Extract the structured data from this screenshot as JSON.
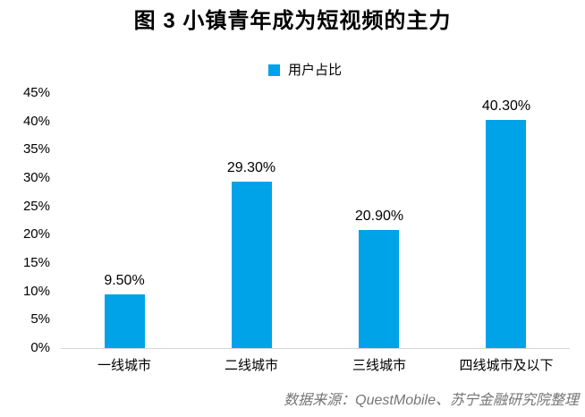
{
  "title": "图 3 小镇青年成为短视频的主力",
  "legend": {
    "label": "用户占比",
    "marker_color": "#00A2E8"
  },
  "footer": "数据来源：QuestMobile、苏宁金融研究院整理",
  "chart_data": {
    "type": "bar",
    "title": "图 3 小镇青年成为短视频的主力",
    "categories": [
      "一线城市",
      "二线城市",
      "三线城市",
      "四线城市及以下"
    ],
    "series": [
      {
        "name": "用户占比",
        "values": [
          9.5,
          29.3,
          20.9,
          40.3
        ]
      }
    ],
    "data_labels": [
      "9.50%",
      "29.30%",
      "20.90%",
      "40.30%"
    ],
    "xlabel": "",
    "ylabel": "",
    "ylim": [
      0,
      45
    ],
    "ytick_step": 5,
    "ytick_labels": [
      "0%",
      "5%",
      "10%",
      "15%",
      "20%",
      "25%",
      "30%",
      "35%",
      "40%",
      "45%"
    ],
    "grid": false,
    "legend_position": "top-center",
    "bar_color": "#00A2E8",
    "axis_line_color": "#D6D6D6",
    "source_note": "数据来源：QuestMobile、苏宁金融研究院整理"
  }
}
